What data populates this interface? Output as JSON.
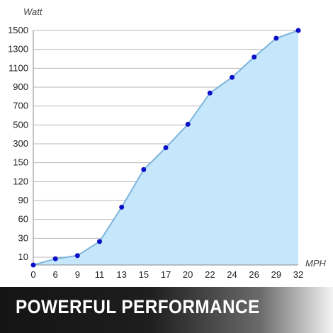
{
  "chart_data": {
    "type": "area",
    "title": "",
    "xlabel": "MPH",
    "ylabel": "Watt",
    "x_ticks": [
      "0",
      "6",
      "9",
      "11",
      "13",
      "15",
      "17",
      "20",
      "22",
      "24",
      "26",
      "29",
      "32"
    ],
    "y_ticks": [
      "10",
      "30",
      "60",
      "90",
      "120",
      "150",
      "300",
      "500",
      "700",
      "900",
      "1100",
      "1300",
      "1500"
    ],
    "x_scale": "categorical (evenly spaced tick labels)",
    "y_scale": "categorical (evenly spaced tick labels)",
    "grid": "horizontal lines on",
    "legend": "none",
    "series": [
      {
        "x": [
          0,
          6,
          9,
          11,
          13,
          15,
          17,
          20,
          22,
          24,
          26,
          29,
          32
        ],
        "y": [
          0,
          40,
          60,
          150,
          370,
          610,
          750,
          900,
          1100,
          1200,
          1330,
          1450,
          1500
        ]
      }
    ],
    "colors": {
      "fill": "#c6e6fb",
      "line": "#7cb4dc",
      "marker": "#0a10c8",
      "grid": "#b8b8b8",
      "axis": "#8a8a8a"
    }
  },
  "banner": {
    "text": "POWERFUL PERFORMANCE"
  }
}
